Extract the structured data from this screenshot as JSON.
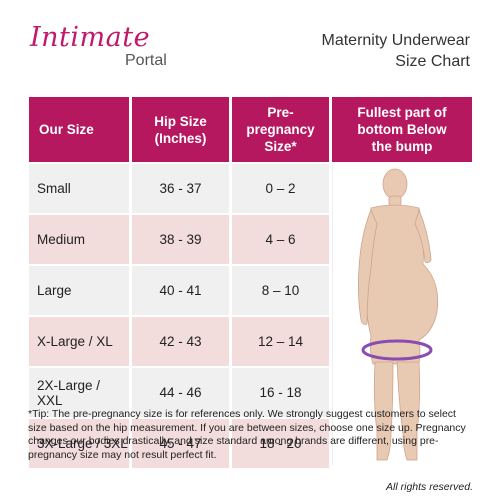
{
  "brand": {
    "name": "Intimate",
    "sub": "Portal",
    "color": "#c2186b"
  },
  "title": {
    "line1": "Maternity Underwear",
    "line2": "Size Chart"
  },
  "table": {
    "header_color": "#b5185e",
    "headers": {
      "size": "Our Size",
      "hip": "Hip Size (Inches)",
      "pre": "Pre-pregnancy Size*",
      "fullest": "Fullest part of bottom Below the bump"
    },
    "rows": [
      {
        "size": "Small",
        "hip": "36 - 37",
        "pre": "0 – 2"
      },
      {
        "size": "Medium",
        "hip": "38 - 39",
        "pre": "4 – 6"
      },
      {
        "size": "Large",
        "hip": "40 - 41",
        "pre": "8 – 10"
      },
      {
        "size": "X-Large / XL",
        "hip": "42 - 43",
        "pre": "12 – 14"
      },
      {
        "size": "2X-Large / XXL",
        "hip": "44 - 46",
        "pre": "16 - 18"
      },
      {
        "size": "3X-Large / 3XL",
        "hip": "45 - 47",
        "pre": "18 - 20"
      }
    ]
  },
  "tip": "*Tip: The pre-pregnancy size is for references only.  We strongly suggest customers to select size based on the hip measurement.  If you are between sizes, choose one size up.  Pregnancy changes our bodies drastically, and size standard among brands are different, using pre-pregnancy size may not result perfect fit.",
  "rights": "All rights reserved."
}
